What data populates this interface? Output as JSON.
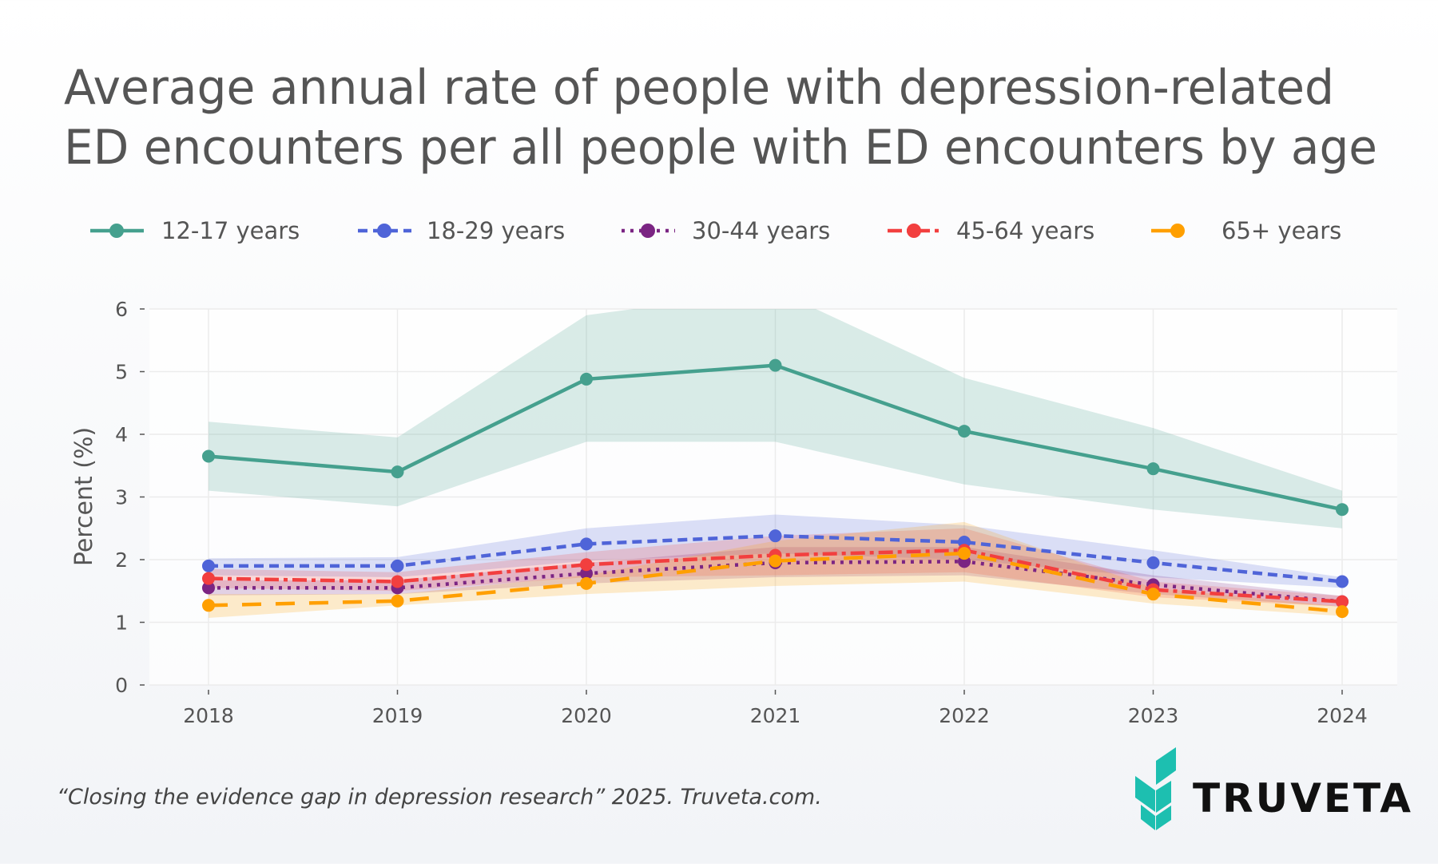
{
  "title_lines": [
    "Average annual rate of people with depression-related",
    "ED encounters per all people with ED encounters by age"
  ],
  "footer": "“Closing the evidence gap in depression research” 2025. Truveta.com.",
  "logo_text": "TRUVETA",
  "logo_color": "#1dbfb0",
  "chart_data": {
    "type": "line",
    "title": "Average annual rate of people with depression-related ED encounters per all people with ED encounters by age",
    "xlabel": "",
    "ylabel": "Percent (%)",
    "x": [
      2018,
      2019,
      2020,
      2021,
      2022,
      2023,
      2024
    ],
    "x_tick_labels": [
      "2018",
      "2019",
      "2020",
      "2021",
      "2022",
      "2023",
      "2024"
    ],
    "ylim": [
      0,
      6
    ],
    "y_ticks": [
      0,
      1,
      2,
      3,
      4,
      5,
      6
    ],
    "y_tick_labels": [
      "0",
      "1",
      "2",
      "3",
      "4",
      "5",
      "6"
    ],
    "grid": true,
    "legend_position": "top",
    "confidence_bands": true,
    "series": [
      {
        "name": "12-17 years",
        "color": "#45a08e",
        "style": "solid",
        "values": [
          3.65,
          3.4,
          4.88,
          5.1,
          4.05,
          3.45,
          2.8
        ],
        "lower": [
          3.1,
          2.85,
          3.88,
          3.88,
          3.2,
          2.8,
          2.5
        ],
        "upper": [
          4.2,
          3.95,
          5.9,
          6.3,
          4.9,
          4.1,
          3.1
        ]
      },
      {
        "name": "18-29 years",
        "color": "#4f64d8",
        "style": "dash",
        "values": [
          1.9,
          1.9,
          2.25,
          2.38,
          2.28,
          1.95,
          1.65
        ],
        "lower": [
          1.75,
          1.72,
          1.98,
          2.1,
          2.0,
          1.72,
          1.55
        ],
        "upper": [
          2.02,
          2.04,
          2.5,
          2.72,
          2.55,
          2.15,
          1.72
        ]
      },
      {
        "name": "30-44 years",
        "color": "#7b2583",
        "style": "dot",
        "values": [
          1.55,
          1.55,
          1.78,
          1.95,
          1.97,
          1.6,
          1.33
        ],
        "lower": [
          1.43,
          1.45,
          1.62,
          1.72,
          1.75,
          1.45,
          1.25
        ],
        "upper": [
          1.67,
          1.67,
          1.95,
          2.2,
          2.2,
          1.75,
          1.42
        ]
      },
      {
        "name": "45-64 years",
        "color": "#f23f3f",
        "style": "dashdot",
        "values": [
          1.7,
          1.65,
          1.92,
          2.07,
          2.15,
          1.52,
          1.33
        ],
        "lower": [
          1.55,
          1.5,
          1.72,
          1.75,
          1.8,
          1.4,
          1.25
        ],
        "upper": [
          1.85,
          1.8,
          2.12,
          2.38,
          2.5,
          1.65,
          1.42
        ]
      },
      {
        "name": "65+ years",
        "color": "#ff9f00",
        "style": "longdash",
        "values": [
          1.27,
          1.34,
          1.62,
          1.98,
          2.1,
          1.45,
          1.17
        ],
        "lower": [
          1.07,
          1.27,
          1.45,
          1.58,
          1.65,
          1.3,
          1.1
        ],
        "upper": [
          1.45,
          1.45,
          1.75,
          2.3,
          2.6,
          1.55,
          1.25
        ]
      }
    ]
  }
}
